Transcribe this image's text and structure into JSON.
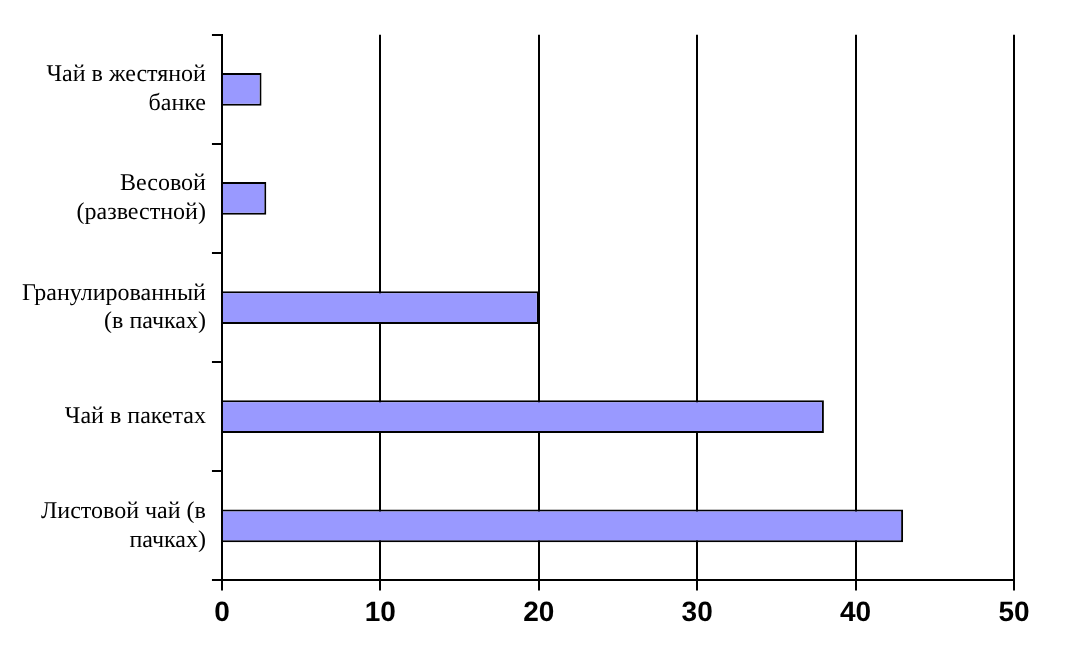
{
  "chart_data": {
    "type": "bar",
    "orientation": "horizontal",
    "categories": [
      "Чай в жестяной банке",
      "Весовой (развестной)",
      "Гранулированный (в пачках)",
      "Чай в пакетах",
      "Листовой чай (в пачках)"
    ],
    "values": [
      2.5,
      2.8,
      20,
      38,
      43
    ],
    "color": "#9999ff",
    "xlim": [
      0,
      50
    ],
    "xticks": [
      0,
      10,
      20,
      30,
      40,
      50
    ],
    "grid": "x",
    "legend": false
  }
}
